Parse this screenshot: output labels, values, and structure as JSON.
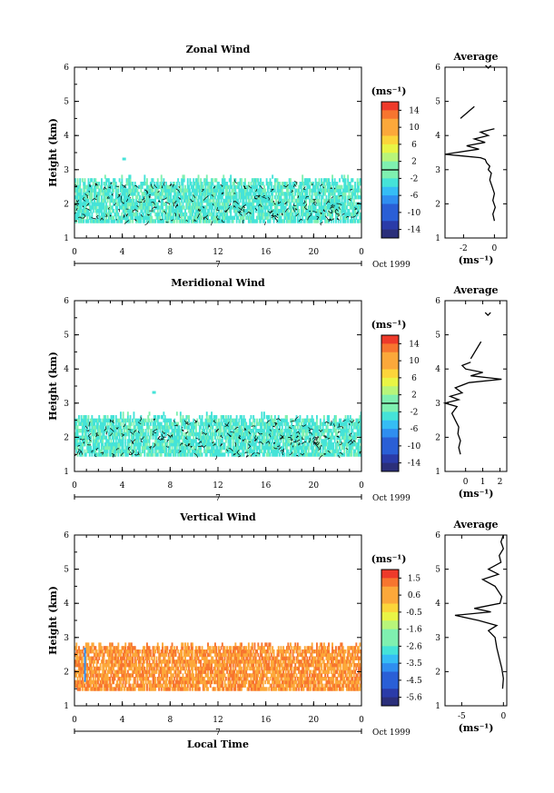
{
  "chart_data": [
    {
      "type": "heatmap",
      "title": "Zonal Wind",
      "ylabel": "Height (km)",
      "ylim": [
        1,
        6
      ],
      "yticks": [
        "1",
        "2",
        "3",
        "4",
        "5",
        "6"
      ],
      "xlim": [
        0,
        24
      ],
      "xticks": [
        "0",
        "4",
        "8",
        "12",
        "16",
        "20",
        "0"
      ],
      "day_label": "7",
      "date_label": "Oct 1999",
      "colorbar": {
        "units": "(ms⁻¹)",
        "ticks": [
          "14",
          "10",
          "6",
          "2",
          "-2",
          "-6",
          "-10",
          "-14"
        ],
        "range": [
          -16,
          16
        ],
        "zero_level": 0
      },
      "data_coverage_km": [
        1.45,
        2.6
      ],
      "isolated_echo": {
        "time_h": 4.0,
        "height_km": 3.3
      },
      "dominant_value": -1.5,
      "average_profile": {
        "title": "Average",
        "xlabel": "(ms⁻¹)",
        "xticks": [
          "-2",
          "0"
        ],
        "xlim": [
          -3.2,
          0.8
        ],
        "ylim": [
          1,
          6
        ],
        "height_km": [
          1.5,
          1.7,
          1.9,
          2.1,
          2.3,
          2.5,
          2.7,
          2.9,
          3.0,
          3.1,
          3.2,
          3.3,
          3.35,
          3.4,
          3.45,
          3.5,
          3.6,
          3.7,
          3.8,
          3.9,
          4.0,
          4.1,
          4.2
        ],
        "value": [
          0.0,
          -0.1,
          0.05,
          -0.1,
          0.0,
          -0.15,
          -0.3,
          -0.2,
          -0.4,
          -0.3,
          -0.5,
          -0.6,
          -0.9,
          -2.0,
          -3.2,
          -2.5,
          -1.0,
          -1.8,
          -0.6,
          -1.3,
          -0.4,
          -0.9,
          0.0
        ],
        "upper_segment": {
          "height_km": [
            4.5,
            4.85
          ],
          "value": [
            -2.2,
            -1.3
          ]
        },
        "top_point": {
          "height_km": 6.0,
          "value": -0.4
        }
      }
    },
    {
      "type": "heatmap",
      "title": "Meridional Wind",
      "ylabel": "Height (km)",
      "ylim": [
        1,
        6
      ],
      "yticks": [
        "1",
        "2",
        "3",
        "4",
        "5",
        "6"
      ],
      "xlim": [
        0,
        24
      ],
      "xticks": [
        "0",
        "4",
        "8",
        "12",
        "16",
        "20",
        "0"
      ],
      "day_label": "7",
      "date_label": "Oct 1999",
      "colorbar": {
        "units": "(ms⁻¹)",
        "ticks": [
          "14",
          "10",
          "6",
          "2",
          "-2",
          "-6",
          "-10",
          "-14"
        ],
        "range": [
          -16,
          16
        ],
        "zero_level": 0
      },
      "data_coverage_km": [
        1.45,
        2.5
      ],
      "isolated_echo": {
        "time_h": 6.5,
        "height_km": 3.3
      },
      "dominant_value": -1.5,
      "average_profile": {
        "title": "Average",
        "xlabel": "(ms⁻¹)",
        "xticks": [
          "0",
          "1",
          "2"
        ],
        "xlim": [
          -1.2,
          2.4
        ],
        "ylim": [
          1,
          6
        ],
        "height_km": [
          1.5,
          1.7,
          1.9,
          2.1,
          2.3,
          2.5,
          2.7,
          2.9,
          3.0,
          3.1,
          3.2,
          3.3,
          3.45,
          3.6,
          3.7,
          3.8,
          3.9,
          4.0,
          4.1,
          4.2
        ],
        "value": [
          -0.3,
          -0.4,
          -0.3,
          -0.45,
          -0.4,
          -0.6,
          -0.8,
          -0.5,
          -1.2,
          -0.4,
          -0.9,
          -0.2,
          -0.6,
          0.2,
          2.1,
          0.3,
          1.0,
          0.0,
          -0.2,
          0.3
        ],
        "upper_segment": {
          "height_km": [
            4.3,
            4.8
          ],
          "value": [
            0.3,
            0.9
          ]
        },
        "top_point": {
          "height_km": 5.6,
          "value": 1.3
        }
      }
    },
    {
      "type": "heatmap",
      "title": "Vertical Wind",
      "xlabel": "Local Time",
      "ylabel": "Height (km)",
      "ylim": [
        1,
        6
      ],
      "yticks": [
        "1",
        "2",
        "3",
        "4",
        "5",
        "6"
      ],
      "xlim": [
        0,
        24
      ],
      "xticks": [
        "0",
        "4",
        "8",
        "12",
        "16",
        "20",
        "0"
      ],
      "day_label": "7",
      "date_label": "Oct 1999",
      "colorbar": {
        "units": "(ms⁻¹)",
        "ticks": [
          "1.5",
          "0.6",
          "-0.5",
          "-1.6",
          "-2.6",
          "-3.5",
          "-4.5",
          "-5.6"
        ],
        "range": [
          -6.1,
          2.0
        ],
        "zero_level": null
      },
      "data_coverage_km": [
        1.45,
        2.65
      ],
      "isolated_echo": {
        "time_h": 0.8,
        "height_km": 2.3
      },
      "dominant_value": 0.8,
      "average_profile": {
        "title": "Average",
        "xlabel": "(ms⁻¹)",
        "xticks": [
          "-5",
          "0"
        ],
        "xlim": [
          -7.0,
          0.4
        ],
        "ylim": [
          1,
          6
        ],
        "height_km": [
          1.5,
          1.8,
          2.1,
          2.4,
          2.7,
          3.0,
          3.2,
          3.35,
          3.5,
          3.65,
          3.75,
          3.85,
          4.0,
          4.2,
          4.5,
          4.7,
          4.85,
          5.0,
          5.2,
          5.4,
          5.6,
          5.8,
          6.0
        ],
        "value": [
          -0.1,
          0.0,
          -0.2,
          -0.5,
          -0.8,
          -1.0,
          -1.8,
          -0.8,
          -3.0,
          -5.8,
          -1.5,
          -3.5,
          -0.4,
          -0.2,
          -1.0,
          -2.5,
          -0.6,
          -1.8,
          -0.3,
          -0.5,
          0.0,
          -0.3,
          0.0
        ],
        "upper_segment": null,
        "top_point": null
      }
    }
  ]
}
